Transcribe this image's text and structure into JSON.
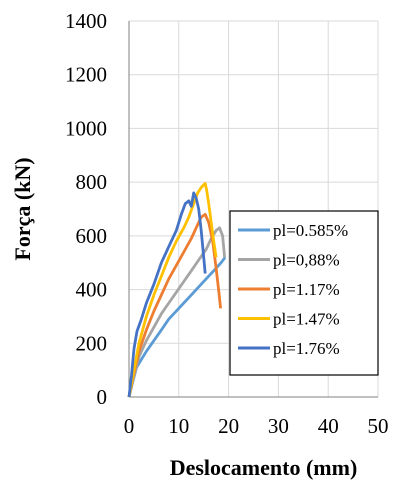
{
  "chart_data": {
    "type": "line",
    "xlabel": "Deslocamento (mm)",
    "ylabel": "Força (kN)",
    "xlim": [
      0,
      50
    ],
    "ylim": [
      0,
      1400
    ],
    "xticks": [
      0,
      10,
      20,
      30,
      40,
      50
    ],
    "yticks": [
      0,
      200,
      400,
      600,
      800,
      1000,
      1200,
      1400
    ],
    "grid": true,
    "legend_position": "right",
    "series": [
      {
        "name": "pl=0.585%",
        "color": "#5b9bd5",
        "points": [
          [
            0,
            0
          ],
          [
            0.8,
            60
          ],
          [
            1.5,
            110
          ],
          [
            2.5,
            140
          ],
          [
            3.5,
            170
          ],
          [
            5,
            210
          ],
          [
            6.5,
            250
          ],
          [
            8,
            290
          ],
          [
            9.5,
            320
          ],
          [
            11,
            350
          ],
          [
            12.5,
            380
          ],
          [
            14,
            410
          ],
          [
            15.5,
            440
          ],
          [
            17,
            470
          ],
          [
            18.5,
            500
          ],
          [
            19.3,
            520
          ]
        ]
      },
      {
        "name": "pl=0,88%",
        "color": "#a5a5a5",
        "points": [
          [
            0,
            0
          ],
          [
            1,
            80
          ],
          [
            2,
            150
          ],
          [
            3.5,
            210
          ],
          [
            5,
            260
          ],
          [
            6.5,
            310
          ],
          [
            8,
            350
          ],
          [
            9.5,
            390
          ],
          [
            11,
            430
          ],
          [
            12.5,
            470
          ],
          [
            14,
            510
          ],
          [
            15.5,
            550
          ],
          [
            16.5,
            590
          ],
          [
            17.5,
            620
          ],
          [
            18.2,
            630
          ],
          [
            18.8,
            600
          ],
          [
            19.2,
            520
          ]
        ]
      },
      {
        "name": "pl=1.17%",
        "color": "#ed7d31",
        "points": [
          [
            0,
            0
          ],
          [
            1,
            90
          ],
          [
            2,
            170
          ],
          [
            3.5,
            250
          ],
          [
            5,
            320
          ],
          [
            6.5,
            380
          ],
          [
            8,
            440
          ],
          [
            9.5,
            490
          ],
          [
            11,
            540
          ],
          [
            12.5,
            590
          ],
          [
            13.5,
            630
          ],
          [
            14.5,
            670
          ],
          [
            15.3,
            680
          ],
          [
            16,
            650
          ],
          [
            16.8,
            580
          ],
          [
            17.5,
            480
          ],
          [
            18,
            400
          ],
          [
            18.4,
            330
          ]
        ]
      },
      {
        "name": "pl=1.47%",
        "color": "#ffc000",
        "points": [
          [
            0,
            0
          ],
          [
            1,
            100
          ],
          [
            2,
            200
          ],
          [
            3.5,
            300
          ],
          [
            5,
            380
          ],
          [
            6.5,
            450
          ],
          [
            8,
            520
          ],
          [
            9.5,
            580
          ],
          [
            11,
            630
          ],
          [
            12,
            670
          ],
          [
            13,
            720
          ],
          [
            13.8,
            760
          ],
          [
            14.5,
            780
          ],
          [
            15,
            790
          ],
          [
            15.3,
            795
          ],
          [
            15.6,
            770
          ],
          [
            16,
            720
          ],
          [
            16.5,
            650
          ],
          [
            17,
            580
          ],
          [
            17.5,
            520
          ]
        ]
      },
      {
        "name": "pl=1.76%",
        "color": "#4472c4",
        "points": [
          [
            0,
            0
          ],
          [
            0.5,
            80
          ],
          [
            1,
            180
          ],
          [
            1.6,
            245
          ],
          [
            2.5,
            290
          ],
          [
            3.5,
            350
          ],
          [
            5,
            420
          ],
          [
            6.5,
            500
          ],
          [
            8,
            560
          ],
          [
            9.5,
            620
          ],
          [
            10.5,
            680
          ],
          [
            11.3,
            720
          ],
          [
            12,
            730
          ],
          [
            12.5,
            710
          ],
          [
            13,
            760
          ],
          [
            13.5,
            740
          ],
          [
            14,
            700
          ],
          [
            14.5,
            620
          ],
          [
            15,
            520
          ],
          [
            15.3,
            460
          ]
        ]
      }
    ]
  }
}
